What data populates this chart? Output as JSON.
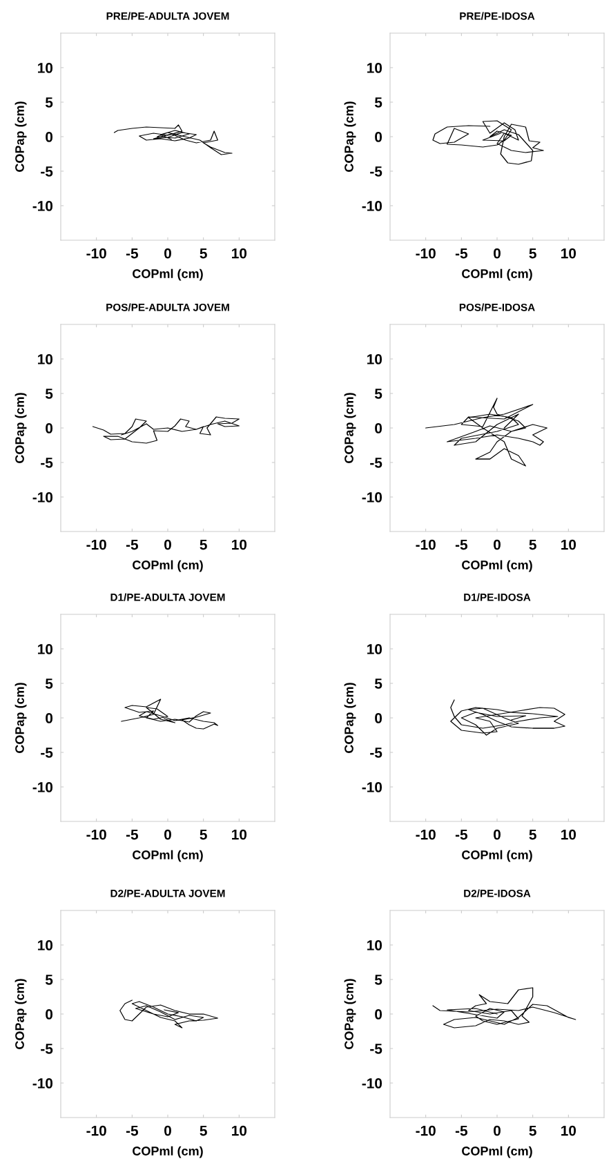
{
  "chart_data": [
    {
      "type": "line",
      "title": "PRE/PE-ADULTA JOVEM",
      "xlabel": "COPml (cm)",
      "ylabel": "COPap (cm)",
      "xlim": [
        -15,
        15
      ],
      "ylim": [
        -15,
        15
      ],
      "xticks": [
        -10,
        -5,
        0,
        5,
        10
      ],
      "yticks": [
        -10,
        -5,
        0,
        5,
        10
      ],
      "series": [
        {
          "color": "#000000",
          "x": [
            -7.5,
            -7,
            -5,
            -3,
            -1,
            1,
            1.5,
            2,
            0,
            -2,
            -4,
            -3,
            -1,
            1,
            3,
            4,
            2,
            0,
            -2,
            0.5,
            2.5,
            4,
            6,
            6.5,
            7,
            5,
            6,
            8,
            9,
            7.5,
            6,
            4.5,
            2,
            0,
            -1.5,
            1,
            3,
            1,
            -1,
            0.5
          ],
          "values": [
            0.6,
            0.9,
            1.2,
            1.4,
            1.3,
            1.2,
            1.7,
            0.8,
            0.2,
            0.5,
            0.1,
            -0.5,
            -0.3,
            -0.6,
            -0.2,
            0.3,
            0.6,
            -0.1,
            -0.3,
            0.4,
            -0.5,
            -0.9,
            -0.5,
            0.8,
            -0.5,
            -0.9,
            -1.5,
            -2.3,
            -2.4,
            -2.6,
            -1.6,
            -0.5,
            0.1,
            0.6,
            0,
            -0.2,
            0.4,
            0.9,
            0.3,
            -0.4
          ]
        }
      ]
    },
    {
      "type": "line",
      "title": "PRE/PE-IDOSA",
      "xlabel": "COPml (cm)",
      "ylabel": "COPap (cm)",
      "xlim": [
        -15,
        15
      ],
      "ylim": [
        -15,
        15
      ],
      "xticks": [
        -10,
        -5,
        0,
        5,
        10
      ],
      "yticks": [
        -10,
        -5,
        0,
        5,
        10
      ],
      "series": [
        {
          "color": "#000000",
          "x": [
            -1,
            -4,
            -7,
            -8.7,
            -9,
            -8,
            -6,
            -4,
            -6,
            -7,
            -5,
            -2,
            0,
            1,
            2,
            0,
            -2,
            -1,
            1,
            2.5,
            3,
            1,
            0,
            2,
            4,
            6.5,
            5,
            6,
            4.5,
            4,
            2,
            1,
            0.5,
            1.5,
            3,
            4.8,
            5,
            3,
            1,
            -1,
            0,
            2,
            1,
            -2,
            0.5
          ],
          "values": [
            1.5,
            1.6,
            1.4,
            0.4,
            -0.5,
            -1,
            -0.8,
            0.4,
            1.2,
            -1.1,
            -1.2,
            -1.5,
            -1.2,
            -0.5,
            1,
            2.3,
            2.2,
            0.5,
            2,
            1,
            -0.5,
            0.5,
            -1,
            -2,
            -2.3,
            -2,
            -1.6,
            -0.8,
            -0.6,
            1.4,
            1.8,
            0,
            -2.5,
            -3.8,
            -4,
            -3.5,
            -2,
            0.3,
            1,
            0,
            0.8,
            0.2,
            -0.6,
            -0.5,
            0.5
          ]
        }
      ]
    },
    {
      "type": "line",
      "title": "POS/PE-ADULTA JOVEM",
      "xlabel": "COPml (cm)",
      "ylabel": "COPap (cm)",
      "xlim": [
        -15,
        15
      ],
      "ylim": [
        -15,
        15
      ],
      "xticks": [
        -10,
        -5,
        0,
        5,
        10
      ],
      "yticks": [
        -10,
        -5,
        0,
        5,
        10
      ],
      "series": [
        {
          "color": "#000000",
          "x": [
            -10.5,
            -9,
            -8,
            -6,
            -5,
            -4.5,
            -3,
            -4,
            -6,
            -8,
            -9,
            -7,
            -5,
            -3,
            -1.5,
            -2,
            0,
            1,
            1.8,
            3,
            2.5,
            4,
            5,
            4.5,
            6,
            5.5,
            6.8,
            8,
            10,
            9,
            7,
            8,
            10,
            8,
            6,
            4,
            2,
            0,
            -2,
            -3,
            -5,
            -6.5
          ],
          "values": [
            0.2,
            -0.3,
            -0.9,
            -0.8,
            0.2,
            1.3,
            1,
            0,
            -1.6,
            -1.7,
            -1.2,
            -1.2,
            -2,
            -2.2,
            -1.8,
            -0.4,
            -0.5,
            0.3,
            1.3,
            1,
            0.2,
            -0.2,
            0.2,
            -0.8,
            -1,
            0,
            1.6,
            1.4,
            1.3,
            0.7,
            0.6,
            0.2,
            0.3,
            1,
            0.5,
            -0.2,
            -0.5,
            0,
            -0.2,
            0.6,
            -0.5,
            -1
          ]
        }
      ]
    },
    {
      "type": "line",
      "title": "POS/PE-IDOSA",
      "xlabel": "COPml (cm)",
      "ylabel": "COPap (cm)",
      "xlim": [
        -15,
        15
      ],
      "ylim": [
        -15,
        15
      ],
      "xticks": [
        -10,
        -5,
        0,
        5,
        10
      ],
      "yticks": [
        -10,
        -5,
        0,
        5,
        10
      ],
      "series": [
        {
          "color": "#000000",
          "x": [
            -10,
            -6,
            -2,
            1,
            5,
            1,
            -4,
            -5,
            -2,
            0,
            -0.5,
            0,
            3,
            4,
            2,
            -1,
            -3,
            -7,
            -3,
            0,
            3,
            5,
            6,
            6.5,
            5,
            7,
            5,
            2,
            0,
            -1,
            -3,
            -1,
            1,
            3,
            4,
            2,
            1,
            -2,
            -4,
            -1,
            2,
            3,
            0,
            -5,
            -6,
            -3,
            0,
            3,
            1
          ],
          "values": [
            0,
            0.5,
            1.5,
            2,
            3.4,
            1.3,
            1.6,
            0.5,
            0.2,
            4.3,
            3,
            2,
            1,
            0,
            -0.5,
            0.3,
            -0.5,
            -2,
            -1.5,
            -1,
            -1.5,
            -2,
            -2.5,
            -2,
            -1,
            0,
            0.5,
            -0.5,
            -2,
            -3.5,
            -4.5,
            -4.5,
            -3,
            -4,
            -5.5,
            -4.5,
            -2,
            0,
            1.5,
            2,
            1.5,
            0.5,
            -0.5,
            -1.5,
            -2.5,
            -2,
            0.5,
            2,
            0
          ]
        }
      ]
    },
    {
      "type": "line",
      "title": "D1/PE-ADULTA JOVEM",
      "xlabel": "COPml (cm)",
      "ylabel": "COPap (cm)",
      "xlim": [
        -15,
        15
      ],
      "ylim": [
        -15,
        15
      ],
      "xticks": [
        -10,
        -5,
        0,
        5,
        10
      ],
      "yticks": [
        -10,
        -5,
        0,
        5,
        10
      ],
      "series": [
        {
          "color": "#000000",
          "x": [
            -6.5,
            -4,
            -2,
            -1,
            -3,
            -5,
            -6,
            -4,
            -2,
            -3,
            -1,
            1,
            3,
            4,
            5,
            6,
            4,
            2,
            3,
            4,
            5,
            6.5,
            7,
            6.5,
            5,
            3,
            1,
            -1,
            -3,
            -4,
            -2,
            0,
            -1.5,
            -3,
            -1,
            1,
            -0.5
          ],
          "values": [
            -0.5,
            0,
            0.5,
            2.7,
            1.6,
            1.8,
            1.5,
            0.8,
            1,
            0,
            -0.5,
            -0.2,
            -0.6,
            0.3,
            0.9,
            0.7,
            0.1,
            -0.3,
            -1,
            -1.5,
            -1.6,
            -0.9,
            -1.1,
            -0.7,
            -0.5,
            0,
            -0.4,
            0.3,
            0.9,
            0.3,
            -0.2,
            0.2,
            1.3,
            1.5,
            -0.2,
            -0.7,
            -0.1
          ]
        }
      ]
    },
    {
      "type": "line",
      "title": "D1/PE-IDOSA",
      "xlabel": "COPml (cm)",
      "ylabel": "COPap (cm)",
      "xlim": [
        -15,
        15
      ],
      "ylim": [
        -15,
        15
      ],
      "xticks": [
        -10,
        -5,
        0,
        5,
        10
      ],
      "yticks": [
        -10,
        -5,
        0,
        5,
        10
      ],
      "series": [
        {
          "color": "#000000",
          "x": [
            -6,
            -6.5,
            -6,
            -5,
            -2,
            1,
            3,
            6,
            8.5,
            5,
            2,
            0,
            -3,
            -5,
            -6.5,
            -5,
            -2,
            0,
            -1,
            -3,
            0,
            3,
            6,
            8,
            9.5,
            8,
            9.5,
            8,
            5,
            2,
            0,
            -2,
            -4,
            -2,
            1,
            3,
            0,
            -1.5,
            -3,
            -5,
            -3,
            0,
            4,
            2
          ],
          "values": [
            2.6,
            1.5,
            0.2,
            -1,
            -1.5,
            -1,
            -0.5,
            0,
            0.2,
            0.6,
            0.8,
            1.2,
            1.5,
            1,
            -0.5,
            -1.8,
            -2.2,
            -2,
            -0.5,
            0,
            0.5,
            1,
            1.5,
            1.4,
            0.5,
            -0.5,
            -1.2,
            -1.5,
            -1.5,
            -1.3,
            -0.5,
            0.5,
            1.2,
            1.4,
            0,
            -0.8,
            -1.5,
            -2.5,
            -1,
            0,
            0.8,
            0.2,
            0.3,
            -0.3
          ]
        }
      ]
    },
    {
      "type": "line",
      "title": "D2/PE-ADULTA JOVEM",
      "xlabel": "COPml (cm)",
      "ylabel": "COPap (cm)",
      "xlim": [
        -15,
        15
      ],
      "ylim": [
        -15,
        15
      ],
      "xticks": [
        -10,
        -5,
        0,
        5,
        10
      ],
      "yticks": [
        -10,
        -5,
        0,
        5,
        10
      ],
      "series": [
        {
          "color": "#000000",
          "x": [
            -5,
            -6,
            -6.7,
            -6,
            -5,
            -4,
            -3,
            -1,
            1,
            3,
            5,
            6,
            7,
            5,
            3,
            1,
            2,
            1,
            -1,
            -3,
            -5,
            -4,
            -2,
            0,
            2,
            4,
            5,
            3,
            1,
            -1,
            -3,
            -4.5,
            -2,
            0,
            1.5,
            -0.5
          ],
          "values": [
            2,
            1.5,
            0.5,
            -0.8,
            -1,
            0,
            1,
            1.3,
            0.5,
            0,
            0,
            -0.3,
            -0.6,
            -0.9,
            -1,
            -1.5,
            -2,
            -1,
            -0.5,
            0.5,
            1.5,
            1.8,
            1,
            0,
            -0.4,
            -1,
            -0.5,
            -0.2,
            -0.8,
            0.3,
            1.2,
            0.8,
            0,
            -0.4,
            0.2,
            0.6
          ]
        }
      ]
    },
    {
      "type": "line",
      "title": "D2/PE-IDOSA",
      "xlabel": "COPml (cm)",
      "ylabel": "COPap (cm)",
      "xlim": [
        -15,
        15
      ],
      "ylim": [
        -15,
        15
      ],
      "xticks": [
        -10,
        -5,
        0,
        5,
        10
      ],
      "yticks": [
        -10,
        -5,
        0,
        5,
        10
      ],
      "series": [
        {
          "color": "#000000",
          "x": [
            -9,
            -8,
            -4,
            0,
            3,
            5,
            8,
            11,
            10,
            7,
            5,
            3,
            1,
            -3,
            -6,
            -7.5,
            -6,
            -3,
            -1,
            1,
            3,
            4.5,
            3.5,
            5,
            5,
            3,
            1.5,
            -1,
            -2.5,
            -1.5,
            -3,
            -4,
            -1,
            2,
            3,
            0,
            -2,
            -3,
            -1,
            1,
            0,
            -7,
            -3,
            0
          ],
          "values": [
            1.2,
            0.5,
            0.3,
            0.7,
            0.5,
            1,
            0.2,
            -0.8,
            -0.5,
            1.2,
            1.4,
            -0.5,
            -1.5,
            -0.5,
            -0.8,
            -1.5,
            -2,
            -1.7,
            -0.8,
            -1,
            -1.5,
            -1.2,
            -0.3,
            2.5,
            3.8,
            3.5,
            1.5,
            1.8,
            2.8,
            1.5,
            1.2,
            0.5,
            0,
            0.5,
            -0.7,
            -1.5,
            -1,
            -0.3,
            0.8,
            0.3,
            -0.6,
            0.6,
            0.8,
            0
          ]
        }
      ]
    }
  ]
}
